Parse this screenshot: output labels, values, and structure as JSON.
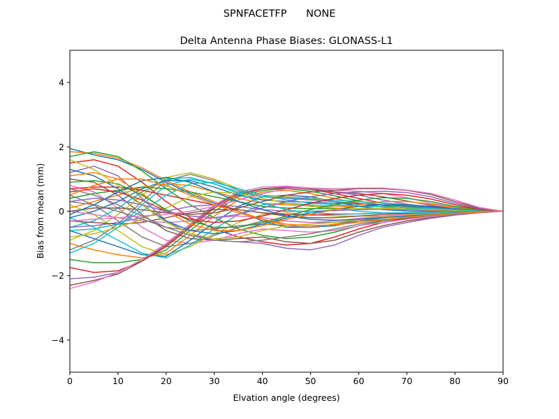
{
  "figure": {
    "suptitle": "SPNFACETFP      NONE"
  },
  "chart_data": {
    "type": "line",
    "title": "Delta Antenna Phase Biases: GLONASS-L1",
    "xlabel": "Elvation angle (degrees)",
    "ylabel": "Bias from mean (mm)",
    "xlim": [
      0,
      90
    ],
    "ylim": [
      -5,
      5
    ],
    "xticks": [
      0,
      10,
      20,
      30,
      40,
      50,
      60,
      70,
      80,
      90
    ],
    "xtick_labels": [
      "0",
      "10",
      "20",
      "30",
      "40",
      "50",
      "60",
      "70",
      "80",
      "90"
    ],
    "yticks": [
      -4,
      -2,
      0,
      2,
      4
    ],
    "ytick_labels": [
      "−4",
      "−2",
      "0",
      "2",
      "4"
    ],
    "grid": false,
    "legend": "none",
    "colors": [
      "#1f77b4",
      "#ff7f0e",
      "#2ca02c",
      "#d62728",
      "#9467bd",
      "#8c564b",
      "#e377c2",
      "#7f7f7f",
      "#bcbd22",
      "#17becf"
    ],
    "x": [
      0,
      5,
      10,
      15,
      20,
      25,
      30,
      35,
      40,
      45,
      50,
      55,
      60,
      65,
      70,
      75,
      80,
      85,
      90
    ],
    "series": [
      {
        "values": [
          1.95,
          1.75,
          1.6,
          1.3,
          0.9,
          0.55,
          0.25,
          0.0,
          -0.3,
          -0.5,
          -0.5,
          -0.45,
          -0.3,
          -0.2,
          -0.15,
          -0.1,
          -0.05,
          -0.02,
          0
        ]
      },
      {
        "values": [
          1.85,
          1.8,
          1.65,
          1.35,
          0.95,
          0.6,
          0.3,
          0.0,
          -0.25,
          -0.45,
          -0.5,
          -0.4,
          -0.3,
          -0.2,
          -0.12,
          -0.08,
          -0.04,
          -0.02,
          0
        ]
      },
      {
        "values": [
          1.7,
          1.85,
          1.7,
          1.25,
          0.7,
          0.2,
          -0.2,
          -0.55,
          -0.75,
          -0.85,
          -0.8,
          -0.65,
          -0.45,
          -0.3,
          -0.2,
          -0.12,
          -0.06,
          -0.02,
          0
        ]
      },
      {
        "values": [
          1.5,
          1.6,
          1.4,
          0.9,
          0.3,
          -0.2,
          -0.55,
          -0.8,
          -0.95,
          -1.05,
          -1.0,
          -0.8,
          -0.55,
          -0.35,
          -0.22,
          -0.14,
          -0.07,
          -0.03,
          0
        ]
      },
      {
        "values": [
          1.2,
          1.4,
          1.1,
          0.4,
          -0.3,
          -0.7,
          -0.9,
          -0.95,
          -1.0,
          -1.15,
          -1.2,
          -1.05,
          -0.75,
          -0.5,
          -0.35,
          -0.22,
          -0.12,
          -0.05,
          0
        ]
      },
      {
        "values": [
          1.0,
          0.9,
          0.5,
          -0.1,
          -0.6,
          -0.85,
          -0.9,
          -0.85,
          -0.8,
          -0.95,
          -1.0,
          -0.9,
          -0.65,
          -0.45,
          -0.3,
          -0.2,
          -0.1,
          -0.04,
          0
        ]
      },
      {
        "values": [
          0.8,
          0.6,
          0.1,
          -0.5,
          -0.9,
          -1.0,
          -0.9,
          -0.7,
          -0.55,
          -0.6,
          -0.65,
          -0.6,
          -0.45,
          -0.35,
          -0.25,
          -0.17,
          -0.09,
          -0.04,
          0
        ]
      },
      {
        "values": [
          0.5,
          0.2,
          -0.3,
          -0.8,
          -1.1,
          -1.0,
          -0.75,
          -0.5,
          -0.3,
          -0.3,
          -0.35,
          -0.35,
          -0.3,
          -0.25,
          -0.2,
          -0.13,
          -0.07,
          -0.03,
          0
        ]
      },
      {
        "values": [
          0.2,
          -0.1,
          -0.6,
          -1.1,
          -1.35,
          -1.1,
          -0.7,
          -0.35,
          -0.1,
          -0.05,
          -0.1,
          -0.15,
          -0.15,
          -0.15,
          -0.12,
          -0.09,
          -0.05,
          -0.02,
          0
        ]
      },
      {
        "values": [
          -0.2,
          -0.5,
          -0.9,
          -1.3,
          -1.45,
          -1.05,
          -0.55,
          -0.1,
          0.2,
          0.25,
          0.2,
          0.1,
          0.0,
          -0.05,
          -0.06,
          -0.05,
          -0.03,
          -0.01,
          0
        ]
      },
      {
        "values": [
          -0.6,
          -0.85,
          -1.1,
          -1.35,
          -1.4,
          -0.9,
          -0.35,
          0.15,
          0.45,
          0.5,
          0.45,
          0.3,
          0.15,
          0.05,
          0.01,
          0.0,
          0.0,
          0.0,
          0
        ]
      },
      {
        "values": [
          -1.0,
          -1.2,
          -1.35,
          -1.45,
          -1.3,
          -0.75,
          -0.15,
          0.35,
          0.6,
          0.65,
          0.55,
          0.4,
          0.25,
          0.12,
          0.06,
          0.03,
          0.01,
          0.0,
          0
        ]
      },
      {
        "values": [
          -1.5,
          -1.6,
          -1.6,
          -1.5,
          -1.2,
          -0.6,
          0.0,
          0.45,
          0.65,
          0.7,
          0.62,
          0.48,
          0.32,
          0.18,
          0.1,
          0.05,
          0.02,
          0.01,
          0
        ]
      },
      {
        "values": [
          -1.75,
          -1.9,
          -1.85,
          -1.55,
          -1.1,
          -0.5,
          0.1,
          0.5,
          0.7,
          0.75,
          0.68,
          0.55,
          0.4,
          0.25,
          0.15,
          0.08,
          0.04,
          0.01,
          0
        ]
      },
      {
        "values": [
          -2.1,
          -2.05,
          -1.9,
          -1.5,
          -1.0,
          -0.4,
          0.2,
          0.55,
          0.7,
          0.75,
          0.7,
          0.6,
          0.5,
          0.35,
          0.22,
          0.12,
          0.06,
          0.02,
          0
        ]
      },
      {
        "values": [
          -2.3,
          -2.15,
          -1.95,
          -1.55,
          -1.05,
          -0.45,
          0.15,
          0.55,
          0.7,
          0.72,
          0.68,
          0.6,
          0.55,
          0.45,
          0.32,
          0.18,
          0.08,
          0.03,
          0
        ]
      },
      {
        "values": [
          -2.4,
          -2.2,
          -1.9,
          -1.5,
          -1.0,
          -0.4,
          0.2,
          0.6,
          0.75,
          0.78,
          0.72,
          0.65,
          0.62,
          0.55,
          0.42,
          0.25,
          0.12,
          0.04,
          0
        ]
      },
      {
        "values": [
          -1.2,
          -0.9,
          -0.4,
          0.3,
          0.95,
          1.15,
          0.95,
          0.65,
          0.45,
          0.4,
          0.35,
          0.3,
          0.25,
          0.2,
          0.15,
          0.1,
          0.06,
          0.03,
          0
        ]
      },
      {
        "values": [
          -0.9,
          -0.6,
          -0.1,
          0.5,
          1.05,
          1.2,
          1.0,
          0.7,
          0.5,
          0.45,
          0.4,
          0.35,
          0.3,
          0.25,
          0.18,
          0.12,
          0.07,
          0.03,
          0
        ]
      },
      {
        "values": [
          -0.5,
          -0.3,
          0.1,
          0.6,
          1.0,
          1.05,
          0.85,
          0.6,
          0.45,
          0.42,
          0.38,
          0.35,
          0.3,
          0.26,
          0.2,
          0.14,
          0.08,
          0.03,
          0
        ]
      },
      {
        "values": [
          -0.2,
          0.0,
          0.3,
          0.7,
          0.95,
          0.95,
          0.75,
          0.5,
          0.35,
          0.3,
          0.28,
          0.25,
          0.22,
          0.2,
          0.16,
          0.12,
          0.07,
          0.03,
          0
        ]
      },
      {
        "values": [
          0.1,
          0.3,
          0.5,
          0.75,
          0.85,
          0.8,
          0.6,
          0.4,
          0.25,
          0.2,
          0.18,
          0.16,
          0.15,
          0.14,
          0.12,
          0.09,
          0.05,
          0.02,
          0
        ]
      },
      {
        "values": [
          0.4,
          0.55,
          0.65,
          0.75,
          0.7,
          0.6,
          0.45,
          0.3,
          0.15,
          0.1,
          0.08,
          0.08,
          0.08,
          0.08,
          0.07,
          0.06,
          0.04,
          0.02,
          0
        ]
      },
      {
        "values": [
          0.7,
          0.75,
          0.75,
          0.65,
          0.5,
          0.35,
          0.2,
          0.05,
          -0.05,
          -0.1,
          -0.12,
          -0.1,
          -0.08,
          -0.06,
          -0.05,
          -0.04,
          -0.02,
          -0.01,
          0
        ]
      },
      {
        "values": [
          -0.5,
          -0.45,
          -0.35,
          -0.2,
          0.0,
          0.15,
          0.2,
          0.15,
          0.05,
          0.0,
          0.0,
          0.02,
          0.05,
          0.06,
          0.05,
          0.04,
          0.02,
          0.01,
          0
        ]
      },
      {
        "values": [
          -0.3,
          -0.35,
          -0.4,
          -0.35,
          -0.2,
          -0.05,
          0.05,
          0.05,
          -0.05,
          -0.15,
          -0.2,
          -0.2,
          -0.15,
          -0.1,
          -0.07,
          -0.05,
          -0.03,
          -0.01,
          0
        ]
      },
      {
        "values": [
          0.0,
          -0.1,
          -0.2,
          -0.3,
          -0.35,
          -0.3,
          -0.2,
          -0.15,
          -0.2,
          -0.3,
          -0.35,
          -0.3,
          -0.22,
          -0.15,
          -0.1,
          -0.07,
          -0.04,
          -0.02,
          0
        ]
      },
      {
        "values": [
          0.3,
          0.2,
          0.0,
          -0.25,
          -0.5,
          -0.6,
          -0.55,
          -0.45,
          -0.4,
          -0.45,
          -0.5,
          -0.42,
          -0.3,
          -0.2,
          -0.14,
          -0.09,
          -0.05,
          -0.02,
          0
        ]
      },
      {
        "values": [
          -0.8,
          -0.7,
          -0.5,
          -0.25,
          0.1,
          0.45,
          0.6,
          0.55,
          0.4,
          0.25,
          0.15,
          0.1,
          0.08,
          0.08,
          0.07,
          0.05,
          0.03,
          0.01,
          0
        ]
      },
      {
        "values": [
          -0.6,
          -0.55,
          -0.4,
          0.0,
          0.5,
          0.85,
          0.9,
          0.7,
          0.5,
          0.35,
          0.25,
          0.2,
          0.16,
          0.14,
          0.11,
          0.08,
          0.05,
          0.02,
          0
        ]
      },
      {
        "values": [
          1.3,
          1.1,
          0.7,
          0.2,
          -0.3,
          -0.6,
          -0.7,
          -0.6,
          -0.4,
          -0.2,
          -0.05,
          0.05,
          0.15,
          0.2,
          0.2,
          0.15,
          0.08,
          0.03,
          0
        ]
      },
      {
        "values": [
          1.1,
          1.2,
          1.0,
          0.55,
          0.0,
          -0.4,
          -0.6,
          -0.6,
          -0.45,
          -0.25,
          -0.1,
          0.05,
          0.2,
          0.3,
          0.3,
          0.22,
          0.12,
          0.04,
          0
        ]
      },
      {
        "values": [
          0.9,
          0.95,
          0.85,
          0.5,
          0.05,
          -0.3,
          -0.5,
          -0.5,
          -0.35,
          -0.15,
          0.05,
          0.2,
          0.35,
          0.42,
          0.4,
          0.3,
          0.15,
          0.05,
          0
        ]
      },
      {
        "values": [
          0.6,
          0.7,
          0.6,
          0.35,
          0.0,
          -0.25,
          -0.35,
          -0.3,
          -0.15,
          0.05,
          0.25,
          0.4,
          0.5,
          0.55,
          0.5,
          0.38,
          0.2,
          0.06,
          0
        ]
      },
      {
        "values": [
          0.3,
          0.4,
          0.35,
          0.2,
          0.0,
          -0.15,
          -0.2,
          -0.1,
          0.1,
          0.3,
          0.45,
          0.55,
          0.6,
          0.62,
          0.58,
          0.45,
          0.25,
          0.08,
          0
        ]
      },
      {
        "values": [
          0.0,
          0.1,
          0.1,
          0.05,
          -0.05,
          -0.1,
          -0.05,
          0.1,
          0.3,
          0.5,
          0.6,
          0.65,
          0.7,
          0.7,
          0.65,
          0.52,
          0.3,
          0.1,
          0
        ]
      },
      {
        "values": [
          -0.3,
          -0.25,
          -0.2,
          -0.15,
          -0.1,
          0.0,
          0.15,
          0.35,
          0.55,
          0.7,
          0.72,
          0.7,
          0.72,
          0.72,
          0.66,
          0.55,
          0.35,
          0.12,
          0
        ]
      },
      {
        "values": [
          0.7,
          0.5,
          0.2,
          -0.15,
          -0.5,
          -0.75,
          -0.9,
          -0.95,
          -0.9,
          -0.8,
          -0.7,
          -0.55,
          -0.4,
          -0.28,
          -0.2,
          -0.14,
          -0.08,
          -0.03,
          0
        ]
      },
      {
        "values": [
          1.6,
          1.3,
          0.8,
          0.2,
          -0.35,
          -0.7,
          -0.85,
          -0.8,
          -0.6,
          -0.45,
          -0.4,
          -0.35,
          -0.25,
          -0.18,
          -0.12,
          -0.08,
          -0.04,
          -0.02,
          0
        ]
      },
      {
        "values": [
          -1.3,
          -1.0,
          -0.5,
          0.2,
          0.8,
          1.0,
          0.85,
          0.55,
          0.25,
          0.05,
          -0.05,
          -0.08,
          -0.08,
          -0.06,
          -0.04,
          -0.03,
          -0.02,
          -0.01,
          0
        ]
      },
      {
        "values": [
          -0.1,
          0.2,
          0.6,
          0.95,
          1.05,
          0.9,
          0.6,
          0.3,
          0.05,
          -0.15,
          -0.25,
          -0.28,
          -0.25,
          -0.2,
          -0.15,
          -0.1,
          -0.05,
          -0.02,
          0
        ]
      },
      {
        "values": [
          0.5,
          0.8,
          1.0,
          1.0,
          0.8,
          0.5,
          0.2,
          -0.05,
          -0.25,
          -0.4,
          -0.45,
          -0.42,
          -0.35,
          -0.26,
          -0.18,
          -0.12,
          -0.06,
          -0.02,
          0
        ]
      }
    ]
  }
}
